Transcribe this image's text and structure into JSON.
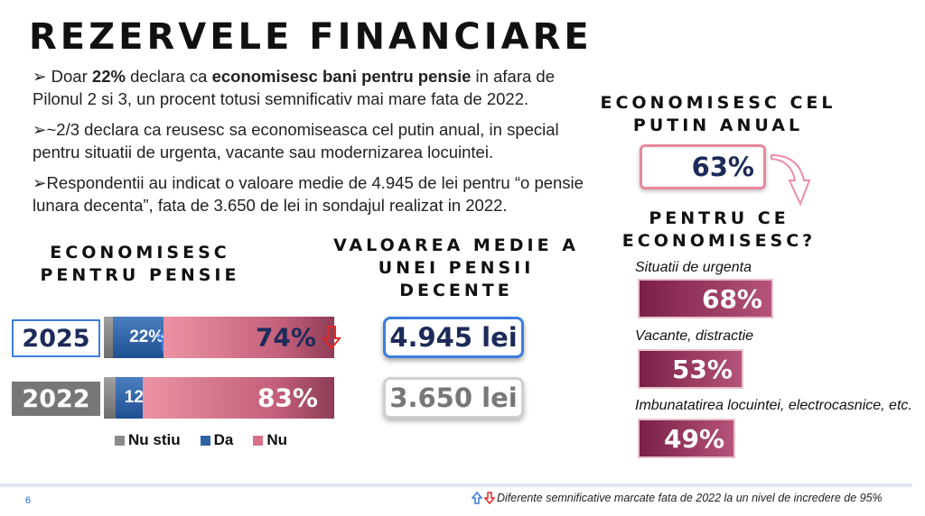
{
  "title": "REZERVELE FINANCIARE",
  "bullets": {
    "b1": {
      "marker": "➢",
      "t1": " Doar ",
      "h1": "22%",
      "t2": " declara ca ",
      "h2": "economisesc bani pentru pensie",
      "t3": " in afara de Pilonul 2 si 3, un procent totusi semnificativ mai mare fata de 2022."
    },
    "b2": "➢~2/3 declara ca reusesc sa economiseasca cel putin anual, in special pentru situatii de urgenta, vacante sau modernizarea locuintei.",
    "b3": "➢Respondentii au indicat o valoare medie de 4.945 de lei pentru “o pensie lunara decenta”, fata de 3.650 de lei in sondajul realizat in 2022."
  },
  "sections": {
    "pension_l1": "ECONOMISESC",
    "pension_l2": "PENTRU PENSIE",
    "avg_l1": "VALOAREA MEDIE A",
    "avg_l2": "UNEI PENSII",
    "avg_l3": "DECENTE",
    "annual_l1": "ECONOMISESC CEL",
    "annual_l2": "PUTIN ANUAL",
    "why_l1": "PENTRU CE",
    "why_l2": "ECONOMISESC?"
  },
  "chart_data": [
    {
      "type": "bar",
      "orientation": "horizontal",
      "stacked": true,
      "title": "ECONOMISESC PENTRU PENSIE",
      "categories": [
        "2025",
        "2022"
      ],
      "series": [
        {
          "name": "Nu stiu",
          "values": [
            4,
            5
          ],
          "labels": [
            "",
            ""
          ],
          "color": "#8a8a8a"
        },
        {
          "name": "Da",
          "values": [
            22,
            12
          ],
          "labels": [
            "22%",
            "12%"
          ],
          "color": "#2f63a8"
        },
        {
          "name": "Nu",
          "values": [
            74,
            83
          ],
          "labels": [
            "74%",
            "83%"
          ],
          "color": "#d77088"
        }
      ],
      "xlim": [
        0,
        100
      ],
      "legend": "bottom",
      "significance": {
        "Da 2025": "up",
        "Nu 2025": "down"
      }
    },
    {
      "type": "bar",
      "orientation": "horizontal",
      "title": "PENTRU CE ECONOMISESC?",
      "categories": [
        "Situatii de urgenta",
        "Vacante, distractie",
        "Imbunatatirea locuintei, electrocasnice, etc."
      ],
      "values": [
        68,
        53,
        49
      ],
      "labels": [
        "68%",
        "53%",
        "49%"
      ],
      "xlim": [
        0,
        100
      ],
      "color": "#8e2d56"
    }
  ],
  "pension_values": {
    "v2025": "4.945 lei",
    "v2022": "3.650 lei"
  },
  "annual_saving": {
    "value": "63%"
  },
  "legend_marker": "■",
  "footer": {
    "page": "6",
    "note": "Diferente semnificative marcate fata de 2022 la un nivel de incredere de 95%"
  },
  "colors": {
    "up": "#3c7ee0",
    "down": "#e02828",
    "accent": "#2a6fc9"
  }
}
